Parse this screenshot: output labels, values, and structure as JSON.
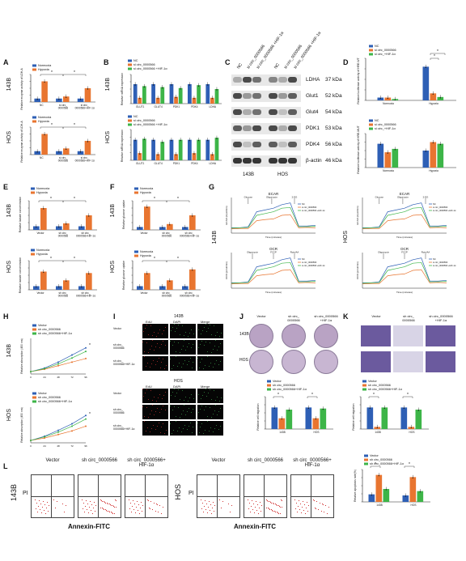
{
  "colors": {
    "normoxia": "#2e5fb5",
    "hypoxia": "#e87530",
    "nc": "#2e5fb5",
    "si": "#e87530",
    "si_hif": "#3db548",
    "vector": "#2e5fb5",
    "sh": "#e87530",
    "sh_hif": "#3db548"
  },
  "panel_labels": {
    "A": "A",
    "B": "B",
    "C": "C",
    "D": "D",
    "E": "E",
    "F": "F",
    "G": "G",
    "H": "H",
    "I": "I",
    "J": "J",
    "K": "K",
    "L": "L"
  },
  "cell_lines": {
    "c143b": "143B",
    "hos": "HOS"
  },
  "legend": {
    "normoxia": "Normoxia",
    "hypoxia": "Hypoxia",
    "nc": "NC",
    "si": "si circ_0000566",
    "si_hif": "si circ_0000566 +HIF-1α",
    "d_si": "si circ_0000566",
    "d_si_hif": "si circ_+HIF-1α",
    "vector": "Vector",
    "sh": "sh circ_0000566",
    "sh_hif": "sh circ_0000566+HIF-1α"
  },
  "axis": {
    "a_top": "Relative enzyme activity of LDH-A",
    "a_bot": "Relative enzyme activity of LDH-A",
    "b_top": "Relative mRNA expression",
    "b_bot": "Relative mRNA expression",
    "d_top": "Relative luciferase activity of HRE-WT",
    "d_bot": "Relative luciferase activity of HRE-MUT",
    "e_top": "Relative lactate concentration",
    "e_bot": "Relative lactate concentration",
    "f_top": "Relative glucose uptake",
    "f_bot": "Relative glucose uptake",
    "h_top": "Relative absorption (450 nm)",
    "h_bot": "Relative absorption (450 nm)",
    "j": "Relative cell migration",
    "k": "Relative cell migration",
    "l": "Relative apoptosis rate(%)",
    "ecar": "ECAR (mpH/min)",
    "ocr": "OCR (pmol/min)",
    "time": "Time (minutes)"
  },
  "a_categories": [
    "NC",
    "si circ_0000566",
    "si circ_0000566+HIF-1α"
  ],
  "b_genes": [
    "GLUT1",
    "GLUT4",
    "PDK1",
    "PDK4",
    "LDHA"
  ],
  "ef_categories": [
    "Vector",
    "sh circ_0000566",
    "sh circ_0000566+HIF-1α"
  ],
  "d_categories": [
    "Normoxia",
    "Hypoxia"
  ],
  "jkl_categories": [
    "143B",
    "HOS"
  ],
  "blot": {
    "lanes": [
      "NC",
      "si circ_0000566",
      "si circ_0000566 +HIF-1α"
    ],
    "proteins": [
      {
        "name": "LDHA",
        "kda": "37 kDa"
      },
      {
        "name": "Glut1",
        "kda": "52 kDa"
      },
      {
        "name": "Glut4",
        "kda": "54 kDa"
      },
      {
        "name": "PDK1",
        "kda": "53 kDa"
      },
      {
        "name": "PDK4",
        "kda": "56 kDa"
      },
      {
        "name": "β-actin",
        "kda": "46 kDa"
      }
    ]
  },
  "seahorse": {
    "ecar": "ECAR",
    "ocr": "OCR",
    "glucose": "Glucose",
    "oligomycin": "Oligomycin",
    "dg": "2-DG",
    "fccp": "FCCP",
    "rotaa": "Rote/AA"
  },
  "microscopy": {
    "i_title_top": "143B",
    "i_title_bot": "HOS",
    "cols": [
      "EdU",
      "DAPI",
      "Merge"
    ],
    "rows_top": [
      "Vector",
      "sh circ_\n0000566",
      "sh circ_\n0000566+HIF-1α"
    ],
    "rows_bot": [
      "Vector",
      "sh circ_\n0000566",
      "sh circ_\n0000566+HIF-1α"
    ]
  },
  "j_cols": [
    "Vector",
    "sh circ_\n0000566",
    "sh circ_0000566\n+HIF-1α"
  ],
  "l_cols": [
    "Vector",
    "sh circ_0000566",
    "sh circ_0000566+\nHIF-1α"
  ],
  "l_axes": {
    "x": "Annexin-FITC",
    "y": "PI"
  },
  "sig": "*",
  "chart_data": [
    {
      "type": "bar",
      "id": "A-143B",
      "series": [
        {
          "name": "Normoxia",
          "values": [
            0.5,
            0.5,
            0.5
          ]
        },
        {
          "name": "Hypoxia",
          "values": [
            3.0,
            0.8,
            2.0
          ]
        }
      ],
      "categories": [
        "NC",
        "si circ_0000566",
        "si circ_0000566+HIF-1α"
      ],
      "ylim": [
        0,
        4
      ]
    },
    {
      "type": "bar",
      "id": "A-HOS",
      "series": [
        {
          "name": "Normoxia",
          "values": [
            0.5,
            0.5,
            0.5
          ]
        },
        {
          "name": "Hypoxia",
          "values": [
            3.0,
            0.9,
            2.0
          ]
        }
      ],
      "categories": [
        "NC",
        "si circ_0000566",
        "si circ_0000566+HIF-1α"
      ],
      "ylim": [
        0,
        4
      ]
    },
    {
      "type": "bar",
      "id": "B-143B",
      "categories": [
        "GLUT1",
        "GLUT4",
        "PDK1",
        "PDK4",
        "LDHA"
      ],
      "series": [
        {
          "name": "NC",
          "values": [
            1.0,
            1.0,
            1.0,
            1.0,
            1.0
          ]
        },
        {
          "name": "si circ_0000566",
          "values": [
            0.3,
            0.3,
            0.35,
            0.3,
            0.3
          ]
        },
        {
          "name": "si circ_0000566 +HIF-1α",
          "values": [
            0.9,
            0.85,
            0.8,
            0.95,
            0.75
          ]
        }
      ],
      "ylim": [
        0,
        1.5
      ]
    },
    {
      "type": "bar",
      "id": "B-HOS",
      "categories": [
        "GLUT1",
        "GLUT4",
        "PDK1",
        "PDK4",
        "LDHA"
      ],
      "series": [
        {
          "name": "NC",
          "values": [
            1.0,
            1.0,
            1.0,
            1.0,
            1.0
          ]
        },
        {
          "name": "si circ_0000566",
          "values": [
            0.35,
            0.3,
            0.3,
            0.35,
            0.3
          ]
        },
        {
          "name": "si circ_0000566 +HIF-1α",
          "values": [
            1.05,
            0.9,
            1.0,
            1.0,
            1.1
          ]
        }
      ],
      "ylim": [
        0,
        1.5
      ]
    },
    {
      "type": "bar",
      "id": "D-top",
      "categories": [
        "Normoxia",
        "Hypoxia"
      ],
      "series": [
        {
          "name": "NC",
          "values": [
            1.0,
            12.0
          ]
        },
        {
          "name": "si circ_0000566",
          "values": [
            1.0,
            2.5
          ]
        },
        {
          "name": "si circ_+HIF-1α",
          "values": [
            0.5,
            1.2
          ]
        }
      ],
      "ylim": [
        0,
        15
      ]
    },
    {
      "type": "bar",
      "id": "D-bot",
      "categories": [
        "Normoxia",
        "Hypoxia"
      ],
      "series": [
        {
          "name": "NC",
          "values": [
            1.4,
            1.0
          ]
        },
        {
          "name": "si circ_0000566",
          "values": [
            0.9,
            1.5
          ]
        },
        {
          "name": "si circ_+HIF-1α",
          "values": [
            1.1,
            1.4
          ]
        }
      ],
      "ylim": [
        0,
        2
      ]
    },
    {
      "type": "bar",
      "id": "E-143B",
      "categories": [
        "Vector",
        "sh circ_0000566",
        "sh circ_0000566+HIF-1α"
      ],
      "series": [
        {
          "name": "Normoxia",
          "values": [
            0.5,
            0.5,
            0.5
          ]
        },
        {
          "name": "Hypoxia",
          "values": [
            3.0,
            0.9,
            2.0
          ]
        }
      ],
      "ylim": [
        0,
        4
      ]
    },
    {
      "type": "bar",
      "id": "E-HOS",
      "categories": [
        "Vector",
        "sh circ_0000566",
        "sh circ_0000566+HIF-1α"
      ],
      "series": [
        {
          "name": "Normoxia",
          "values": [
            0.5,
            0.5,
            0.5
          ]
        },
        {
          "name": "Hypoxia",
          "values": [
            2.5,
            1.3,
            2.3
          ]
        }
      ],
      "ylim": [
        0,
        4
      ]
    },
    {
      "type": "bar",
      "id": "F-143B",
      "categories": [
        "Vector",
        "sh circ_0000566",
        "sh circ_0000566+HIF-1α"
      ],
      "series": [
        {
          "name": "Normoxia",
          "values": [
            0.4,
            0.4,
            0.4
          ]
        },
        {
          "name": "Hypoxia",
          "values": [
            3.2,
            0.8,
            2.0
          ]
        }
      ],
      "ylim": [
        0,
        4
      ]
    },
    {
      "type": "bar",
      "id": "F-HOS",
      "categories": [
        "Vector",
        "sh circ_0000566",
        "sh circ_0000566+HIF-1α"
      ],
      "series": [
        {
          "name": "Normoxia",
          "values": [
            0.5,
            0.5,
            0.5
          ]
        },
        {
          "name": "Hypoxia",
          "values": [
            2.3,
            1.3,
            2.8
          ]
        }
      ],
      "ylim": [
        0,
        4
      ]
    },
    {
      "type": "line",
      "id": "H-143B",
      "x": [
        0,
        24,
        48,
        72,
        96
      ],
      "series": [
        {
          "name": "Vector",
          "values": [
            0.2,
            0.5,
            1.0,
            1.6,
            2.2
          ]
        },
        {
          "name": "sh circ_0000566",
          "values": [
            0.2,
            0.4,
            0.7,
            1.0,
            1.3
          ]
        },
        {
          "name": "sh circ_0000566+HIF-1α",
          "values": [
            0.2,
            0.45,
            0.85,
            1.35,
            1.9
          ]
        }
      ],
      "ylim": [
        0,
        3
      ]
    },
    {
      "type": "line",
      "id": "H-HOS",
      "x": [
        0,
        24,
        48,
        72,
        96
      ],
      "series": [
        {
          "name": "Vector",
          "values": [
            0.2,
            0.55,
            1.05,
            1.6,
            2.3
          ]
        },
        {
          "name": "sh circ_0000566",
          "values": [
            0.2,
            0.4,
            0.7,
            1.0,
            1.4
          ]
        },
        {
          "name": "sh circ_0000566+HIF-1α",
          "values": [
            0.2,
            0.5,
            0.9,
            1.4,
            2.0
          ]
        }
      ],
      "ylim": [
        0,
        3
      ]
    },
    {
      "type": "bar",
      "id": "J",
      "categories": [
        "143B",
        "HOS"
      ],
      "series": [
        {
          "name": "Vector",
          "values": [
            1.0,
            1.0
          ]
        },
        {
          "name": "sh circ_0000566",
          "values": [
            0.5,
            0.5
          ]
        },
        {
          "name": "sh circ_0000566+HIF-1α",
          "values": [
            0.9,
            0.95
          ]
        }
      ],
      "ylim": [
        0,
        1.5
      ]
    },
    {
      "type": "bar",
      "id": "K",
      "categories": [
        "143B",
        "HOS"
      ],
      "series": [
        {
          "name": "Vector",
          "values": [
            1.0,
            1.0
          ]
        },
        {
          "name": "sh circ_0000566",
          "values": [
            0.1,
            0.1
          ]
        },
        {
          "name": "sh circ_0000566+HIF-1α",
          "values": [
            1.0,
            0.9
          ]
        }
      ],
      "ylim": [
        0,
        1.5
      ]
    },
    {
      "type": "bar",
      "id": "L",
      "categories": [
        "143B",
        "HOS"
      ],
      "series": [
        {
          "name": "Vector",
          "values": [
            7,
            6
          ]
        },
        {
          "name": "sh circ_0000566",
          "values": [
            25,
            23
          ]
        },
        {
          "name": "sh circ_0000566+HIF-1α",
          "values": [
            12,
            10
          ]
        }
      ],
      "ylim": [
        0,
        30
      ]
    }
  ]
}
